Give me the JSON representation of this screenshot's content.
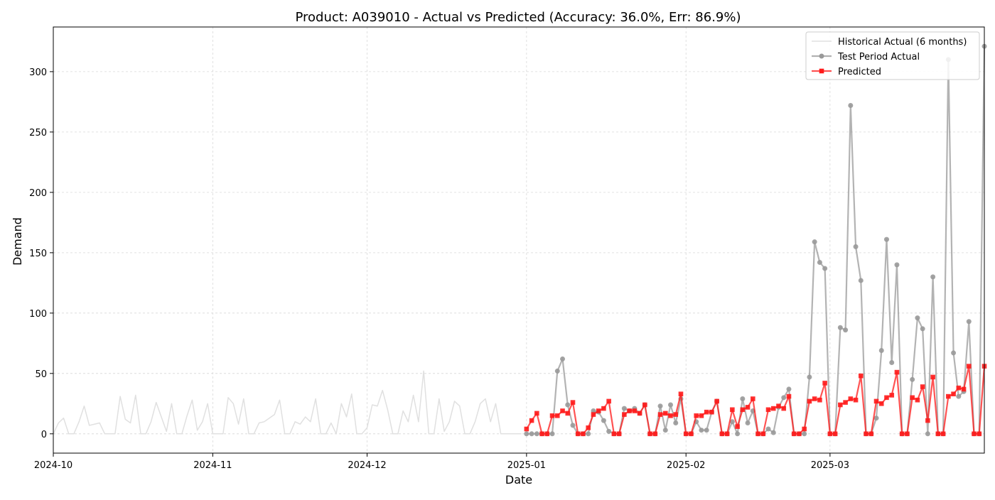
{
  "chart_data": {
    "type": "line",
    "title": "Product: A039010 - Actual vs Predicted (Accuracy: 36.0%, Err: 86.9%)",
    "xlabel": "Date",
    "ylabel": "Demand",
    "x_ticks": [
      "2024-10",
      "2024-11",
      "2024-12",
      "2025-01",
      "2025-02",
      "2025-03"
    ],
    "y_ticks": [
      0,
      50,
      100,
      150,
      200,
      250,
      300
    ],
    "xlim": [
      "2024-10-01",
      "2025-03-31"
    ],
    "ylim": [
      -16,
      337
    ],
    "grid": true,
    "legend_position": "top-right",
    "series": [
      {
        "name": "Historical Actual (6 months)",
        "color": "#e0e0e0",
        "start_date": "2024-10-01",
        "values": [
          0,
          9,
          13,
          0,
          0,
          10,
          23,
          7,
          8,
          9,
          0,
          0,
          0,
          31,
          12,
          9,
          32,
          0,
          0,
          10,
          26,
          14,
          2,
          25,
          0,
          0,
          15,
          28,
          3,
          10,
          25,
          0,
          0,
          0,
          30,
          25,
          8,
          29,
          0,
          0,
          9,
          10,
          13,
          16,
          28,
          0,
          0,
          10,
          8,
          14,
          10,
          29,
          0,
          0,
          9,
          0,
          25,
          14,
          33,
          0,
          0,
          5,
          24,
          23,
          36,
          20,
          0,
          0,
          19,
          10,
          32,
          10,
          52,
          0,
          0,
          29,
          2,
          10,
          27,
          23,
          0,
          0,
          10,
          25,
          29,
          10,
          25,
          0,
          0,
          0,
          0,
          0
        ]
      },
      {
        "name": "Test Period Actual",
        "color": "#999999",
        "marker": "circle",
        "start_date": "2025-01-01",
        "values": [
          0,
          0,
          0,
          0,
          0,
          0,
          52,
          62,
          24,
          7,
          0,
          0,
          0,
          19,
          18,
          11,
          2,
          0,
          0,
          21,
          19,
          21,
          17,
          24,
          0,
          0,
          23,
          3,
          24,
          9,
          29,
          0,
          0,
          10,
          3,
          3,
          18,
          27,
          0,
          0,
          10,
          0,
          29,
          9,
          19,
          0,
          0,
          4,
          1,
          22,
          30,
          37,
          0,
          0,
          0,
          47,
          159,
          142,
          137,
          0,
          0,
          88,
          86,
          272,
          155,
          127,
          0,
          0,
          13,
          69,
          161,
          59,
          140,
          0,
          0,
          45,
          96,
          87,
          0,
          130,
          0,
          0,
          310,
          67,
          31,
          35,
          93,
          0,
          0,
          321
        ]
      },
      {
        "name": "Predicted",
        "color": "#ff1a1a",
        "marker": "square",
        "start_date": "2025-01-01",
        "values": [
          4,
          11,
          17,
          0,
          0,
          15,
          15,
          19,
          17,
          26,
          0,
          0,
          5,
          16,
          19,
          21,
          27,
          0,
          0,
          16,
          19,
          19,
          17,
          24,
          0,
          0,
          16,
          17,
          15,
          16,
          33,
          0,
          0,
          15,
          15,
          18,
          18,
          27,
          0,
          0,
          20,
          6,
          20,
          22,
          29,
          0,
          0,
          20,
          21,
          23,
          21,
          31,
          0,
          0,
          4,
          27,
          29,
          28,
          42,
          0,
          0,
          24,
          26,
          29,
          28,
          48,
          0,
          0,
          27,
          25,
          30,
          32,
          51,
          0,
          0,
          30,
          28,
          39,
          11,
          47,
          0,
          0,
          31,
          33,
          38,
          37,
          56,
          0,
          0,
          56
        ]
      }
    ]
  }
}
